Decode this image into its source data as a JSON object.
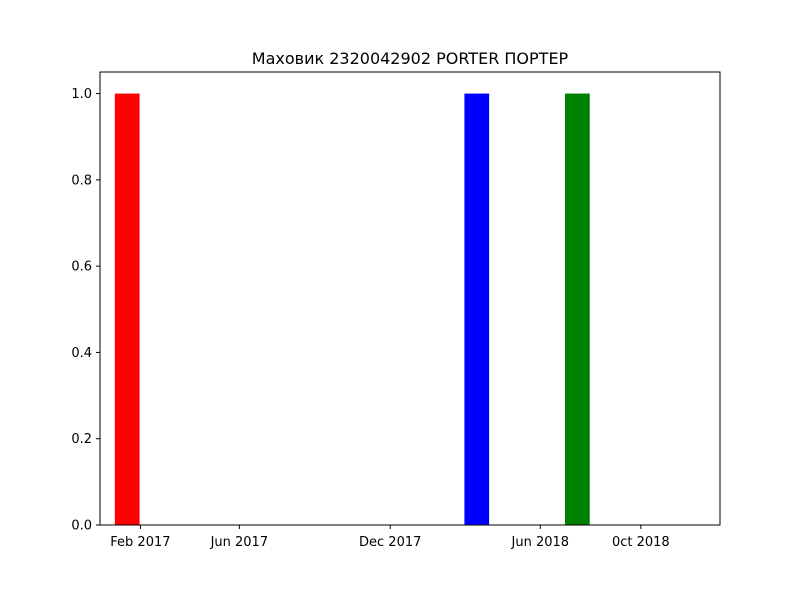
{
  "chart_data": {
    "type": "bar",
    "title": "Маховик 2320042902 PORTER ПОРТЕР",
    "xlabel": "",
    "ylabel": "",
    "x_axis": {
      "scale": "date",
      "range": [
        "2016-12-14",
        "2019-01-05"
      ],
      "ticks": [
        {
          "date": "2017-02-01",
          "label": "Feb 2017"
        },
        {
          "date": "2017-06-01",
          "label": "Jun 2017"
        },
        {
          "date": "2017-12-01",
          "label": "Dec 2017"
        },
        {
          "date": "2018-06-01",
          "label": "Jun 2018"
        },
        {
          "date": "2018-10-01",
          "label": "0ct 2018"
        }
      ]
    },
    "y_axis": {
      "range": [
        0,
        1.05
      ],
      "ticks": [
        0.0,
        0.2,
        0.4,
        0.6,
        0.8,
        1.0
      ],
      "tick_labels": [
        "0.0",
        "0.2",
        "0.4",
        "0.6",
        "0.8",
        "1.0"
      ]
    },
    "grid": false,
    "legend": "none",
    "bars": [
      {
        "start": "2017-01-01",
        "end": "2017-01-31",
        "value": 1.0,
        "color": "#ff0000"
      },
      {
        "start": "2018-03-01",
        "end": "2018-03-31",
        "value": 1.0,
        "color": "#0000ff"
      },
      {
        "start": "2018-07-01",
        "end": "2018-07-31",
        "value": 1.0,
        "color": "#008000"
      }
    ]
  }
}
